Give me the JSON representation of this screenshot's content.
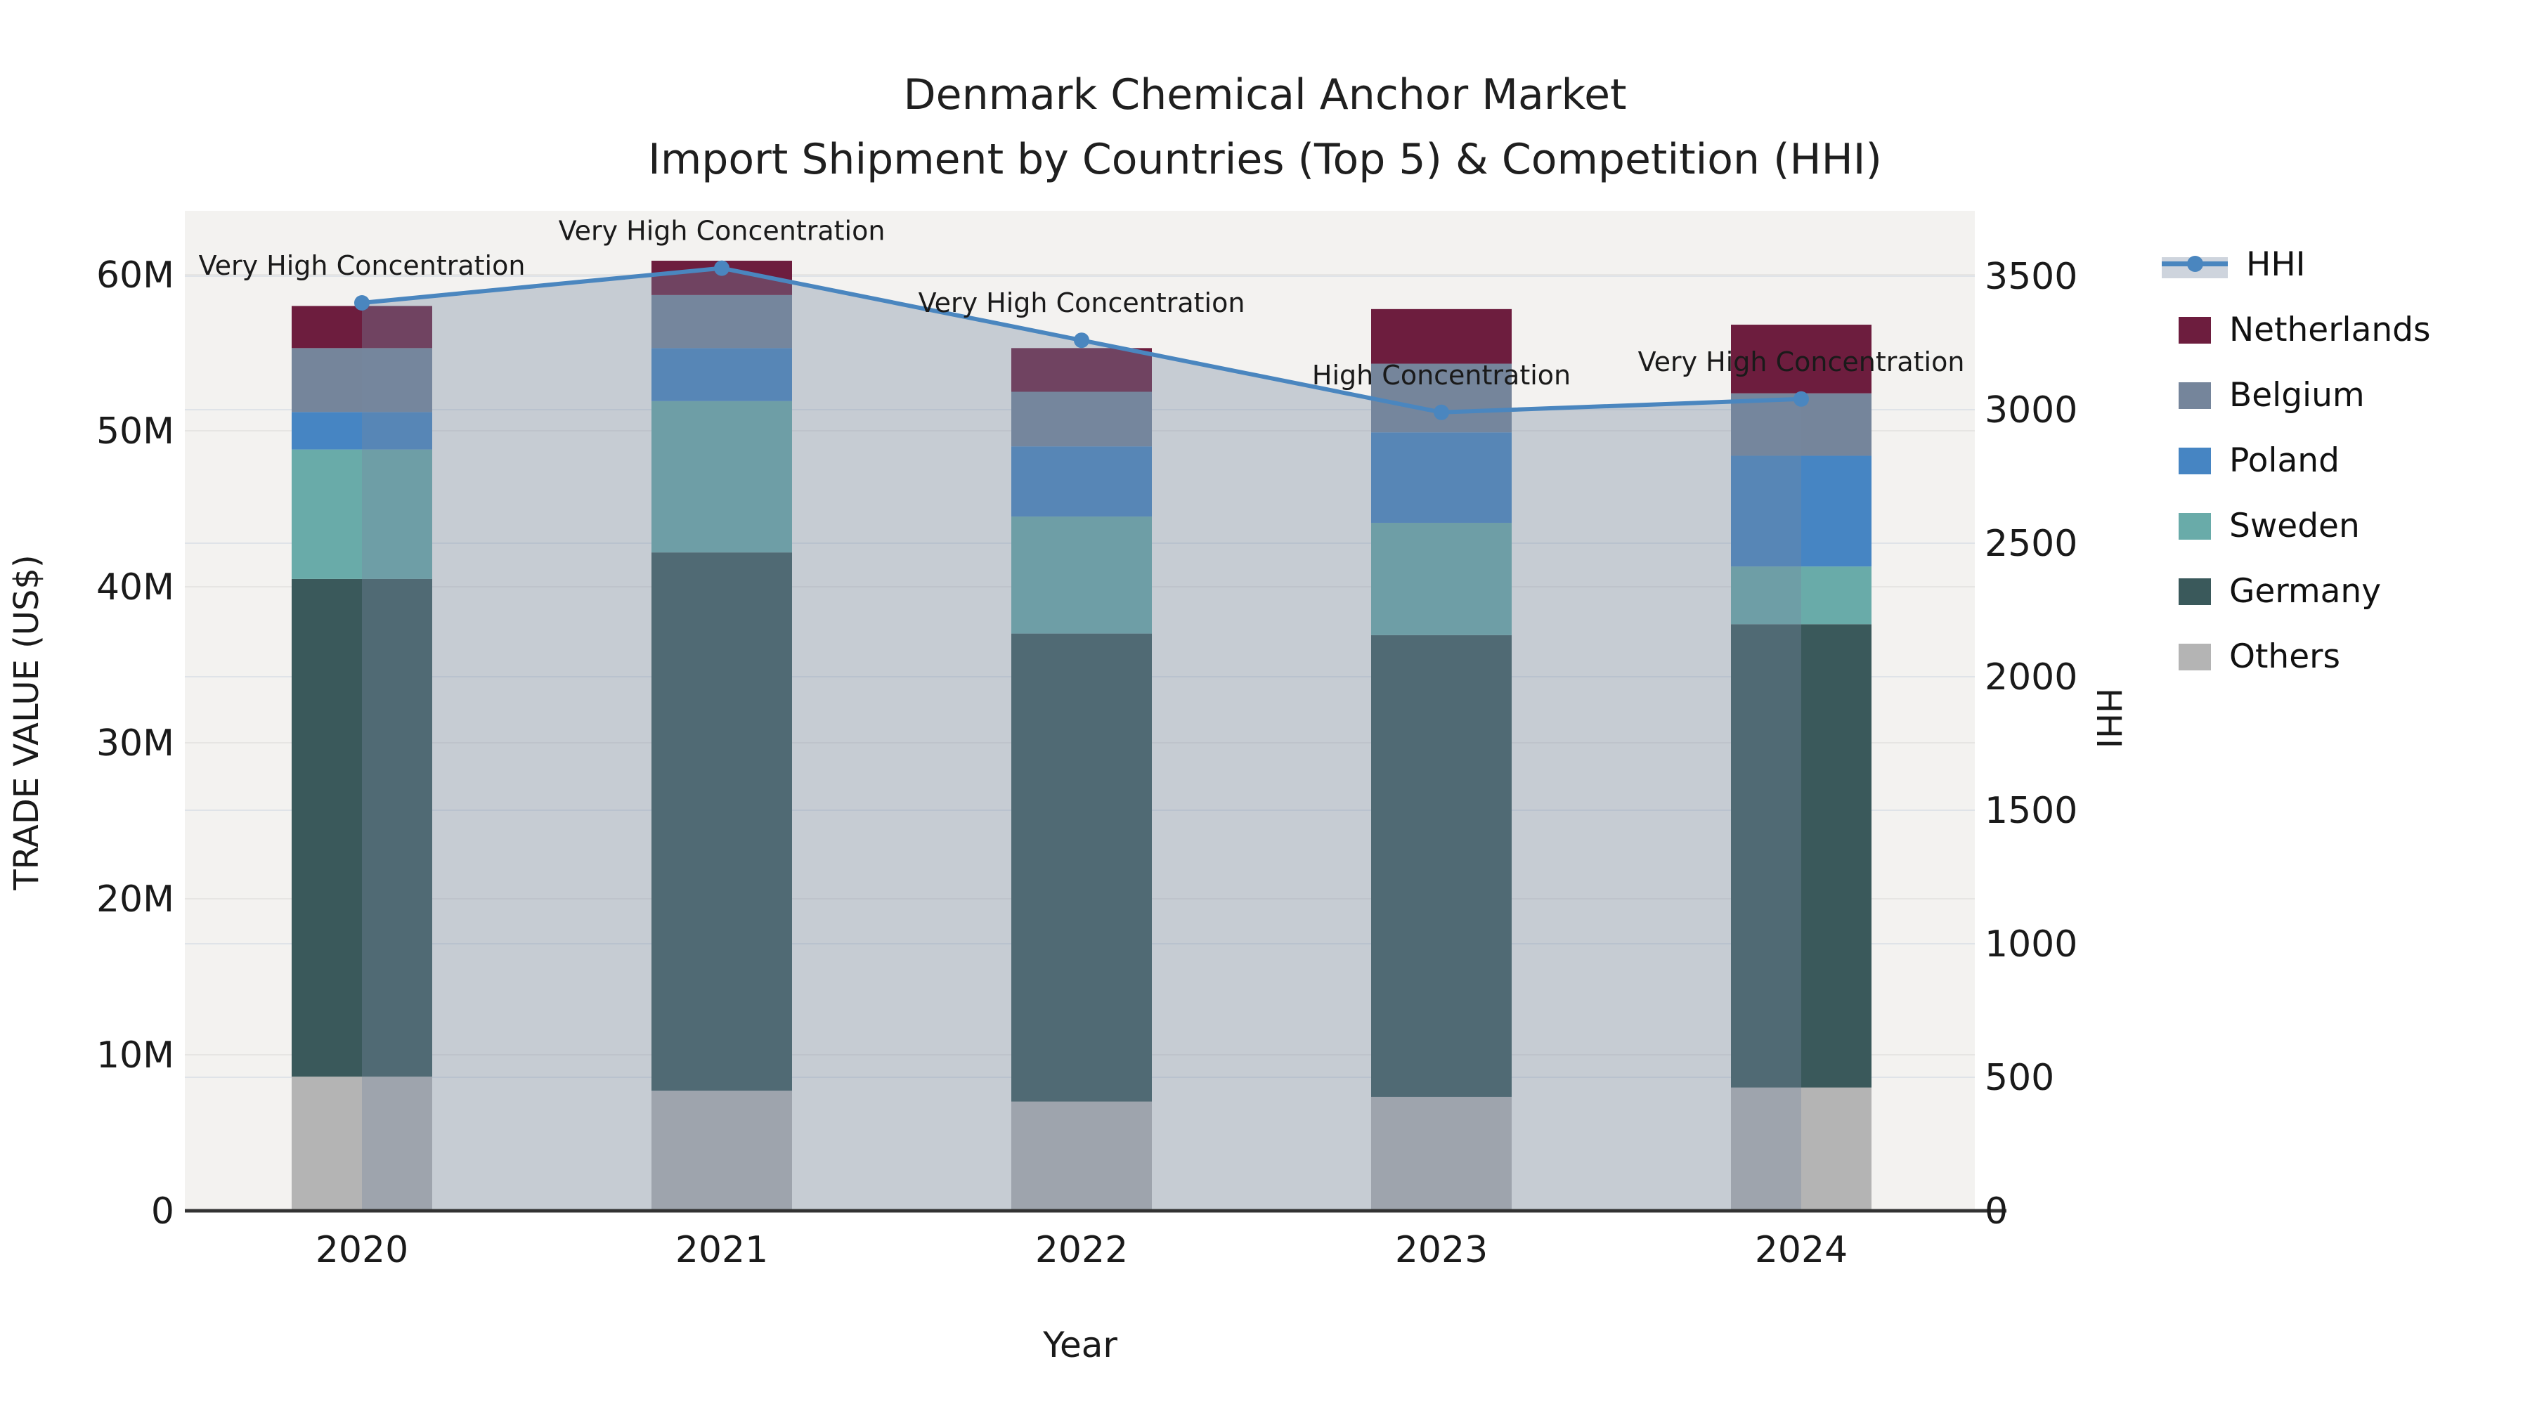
{
  "title": {
    "line1": "Denmark Chemical Anchor Market",
    "line2": "Import Shipment by Countries (Top 5) & Competition (HHI)"
  },
  "axes": {
    "y_left_label": "TRADE VALUE (US$)",
    "y_right_label": "HHI",
    "x_label": "Year",
    "y_left_tick_labels": [
      "0",
      "10M",
      "20M",
      "30M",
      "40M",
      "50M",
      "60M"
    ],
    "y_left_tick_values_millions": [
      0,
      10,
      20,
      30,
      40,
      50,
      60
    ],
    "y_right_tick_labels": [
      "0",
      "500",
      "1000",
      "1500",
      "2000",
      "2500",
      "3000",
      "3500"
    ],
    "y_right_tick_values": [
      0,
      500,
      1000,
      1500,
      2000,
      2500,
      3000,
      3500
    ]
  },
  "legend": [
    {
      "label": "HHI",
      "type": "line",
      "color": "#4a86bf"
    },
    {
      "label": "Netherlands",
      "type": "swatch",
      "color": "#6d1d3e"
    },
    {
      "label": "Belgium",
      "type": "swatch",
      "color": "#75859b"
    },
    {
      "label": "Poland",
      "type": "swatch",
      "color": "#4685c3"
    },
    {
      "label": "Sweden",
      "type": "swatch",
      "color": "#69aba9"
    },
    {
      "label": "Germany",
      "type": "swatch",
      "color": "#3a595b"
    },
    {
      "label": "Others",
      "type": "swatch",
      "color": "#b4b4b4"
    }
  ],
  "chart_data": {
    "type": "bar",
    "stacked": true,
    "title": "Denmark Chemical Anchor Market — Import Shipment by Countries (Top 5) & Competition (HHI)",
    "xlabel": "Year",
    "ylabel_left": "TRADE VALUE (US$)",
    "ylabel_right": "HHI",
    "categories": [
      "2020",
      "2021",
      "2022",
      "2023",
      "2024"
    ],
    "value_unit": "million US$",
    "series": [
      {
        "name": "Others",
        "color": "#b4b4b4",
        "values": [
          8.6,
          7.7,
          7.0,
          7.3,
          7.9
        ]
      },
      {
        "name": "Germany",
        "color": "#3a595b",
        "values": [
          31.9,
          34.5,
          30.0,
          29.6,
          29.7
        ]
      },
      {
        "name": "Sweden",
        "color": "#69aba9",
        "values": [
          8.3,
          9.7,
          7.5,
          7.2,
          3.7
        ]
      },
      {
        "name": "Poland",
        "color": "#4685c3",
        "values": [
          2.4,
          3.4,
          4.5,
          5.8,
          7.1
        ]
      },
      {
        "name": "Belgium",
        "color": "#75859b",
        "values": [
          4.1,
          3.4,
          3.5,
          4.4,
          4.0
        ]
      },
      {
        "name": "Netherlands",
        "color": "#6d1d3e",
        "values": [
          2.7,
          2.2,
          2.8,
          3.5,
          4.4
        ]
      }
    ],
    "bar_totals_millions": [
      58.0,
      60.9,
      55.3,
      57.8,
      56.8
    ],
    "line_series": {
      "name": "HHI",
      "color": "#4a86bf",
      "area_fill": "rgba(119,137,160,0.36)",
      "values": [
        3400,
        3530,
        3260,
        2990,
        3040
      ]
    },
    "annotations": [
      {
        "category": "2020",
        "text": "Very High Concentration"
      },
      {
        "category": "2021",
        "text": "Very High Concentration"
      },
      {
        "category": "2022",
        "text": "Very High Concentration"
      },
      {
        "category": "2023",
        "text": "High Concentration"
      },
      {
        "category": "2024",
        "text": "Very High Concentration"
      }
    ],
    "ylim_left_millions": [
      0,
      64
    ],
    "ylim_right": [
      0,
      3745
    ],
    "grid": true,
    "legend_position": "right"
  },
  "style": {
    "plot_bg": "#f3f2f0",
    "grid_left_color": "#e6e5e3",
    "grid_right_color": "#dfe3e8",
    "spine_color": "#333333",
    "text_color": "#1a1a1a"
  }
}
